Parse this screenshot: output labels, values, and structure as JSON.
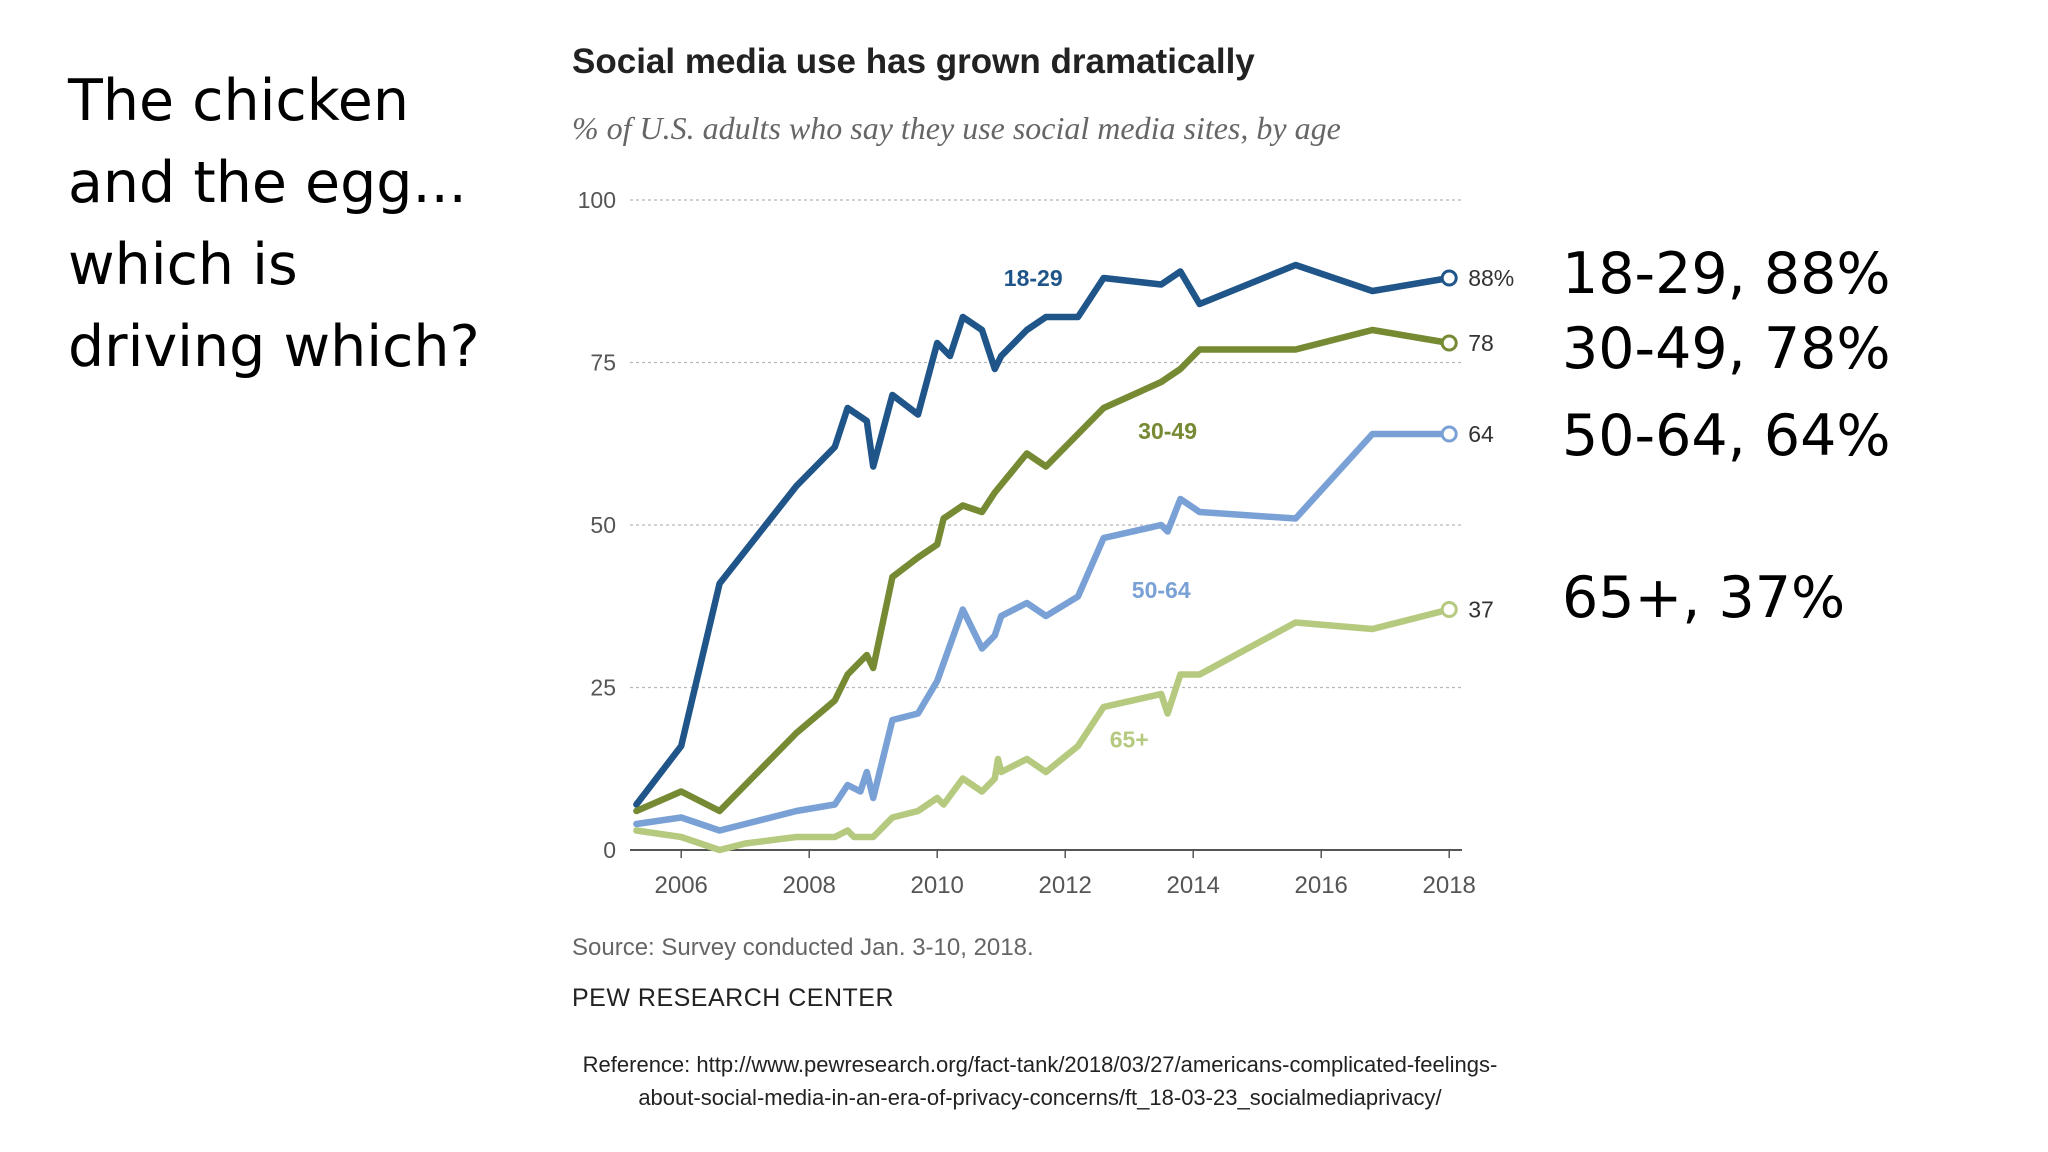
{
  "slide": {
    "question_lines": [
      "The chicken",
      "and the egg...",
      "which is",
      "driving which?"
    ],
    "callouts": [
      "18-29, 88%",
      "30-49, 78%",
      "50-64, 64%",
      "65+, 37%"
    ],
    "reference_lines": [
      "Reference: http://www.pewresearch.org/fact-tank/2018/03/27/americans-complicated-feelings-",
      "about-social-media-in-an-era-of-privacy-concerns/ft_18-03-23_socialmediaprivacy/"
    ]
  },
  "chart_data": {
    "type": "line",
    "title": "Social media use has grown dramatically",
    "subtitle": "% of U.S. adults who say they use social media sites, by age",
    "xlabel": "",
    "ylabel": "",
    "xlim": [
      2005.2,
      2018.2
    ],
    "ylim": [
      0,
      100
    ],
    "x_ticks": [
      2006,
      2008,
      2010,
      2012,
      2014,
      2016,
      2018
    ],
    "y_ticks": [
      0,
      25,
      50,
      75,
      100
    ],
    "grid": true,
    "source": "Source: Survey conducted Jan. 3-10, 2018.",
    "organization": "PEW RESEARCH CENTER",
    "series": [
      {
        "name": "18-29",
        "color": "#1f5589",
        "end_label": "88%",
        "points": [
          [
            2005.3,
            7
          ],
          [
            2006.0,
            16
          ],
          [
            2006.6,
            41
          ],
          [
            2007.0,
            46
          ],
          [
            2007.8,
            56
          ],
          [
            2008.4,
            62
          ],
          [
            2008.6,
            68
          ],
          [
            2008.9,
            66
          ],
          [
            2009.0,
            59
          ],
          [
            2009.3,
            70
          ],
          [
            2009.7,
            67
          ],
          [
            2010.0,
            78
          ],
          [
            2010.2,
            76
          ],
          [
            2010.4,
            82
          ],
          [
            2010.7,
            80
          ],
          [
            2010.9,
            74
          ],
          [
            2011.0,
            76
          ],
          [
            2011.4,
            80
          ],
          [
            2011.7,
            82
          ],
          [
            2012.2,
            82
          ],
          [
            2012.6,
            88
          ],
          [
            2013.5,
            87
          ],
          [
            2013.8,
            89
          ],
          [
            2014.1,
            84
          ],
          [
            2015.6,
            90
          ],
          [
            2016.8,
            86
          ],
          [
            2018.0,
            88
          ]
        ]
      },
      {
        "name": "30-49",
        "color": "#758a33",
        "end_label": "78",
        "points": [
          [
            2005.3,
            6
          ],
          [
            2006.0,
            9
          ],
          [
            2006.6,
            6
          ],
          [
            2007.0,
            10
          ],
          [
            2007.8,
            18
          ],
          [
            2008.4,
            23
          ],
          [
            2008.6,
            27
          ],
          [
            2008.9,
            30
          ],
          [
            2009.0,
            28
          ],
          [
            2009.3,
            42
          ],
          [
            2009.7,
            45
          ],
          [
            2010.0,
            47
          ],
          [
            2010.1,
            51
          ],
          [
            2010.4,
            53
          ],
          [
            2010.7,
            52
          ],
          [
            2010.9,
            55
          ],
          [
            2011.4,
            61
          ],
          [
            2011.7,
            59
          ],
          [
            2012.2,
            64
          ],
          [
            2012.6,
            68
          ],
          [
            2013.5,
            72
          ],
          [
            2013.8,
            74
          ],
          [
            2014.1,
            77
          ],
          [
            2015.6,
            77
          ],
          [
            2016.8,
            80
          ],
          [
            2018.0,
            78
          ]
        ]
      },
      {
        "name": "50-64",
        "color": "#7aa1d6",
        "end_label": "64",
        "points": [
          [
            2005.3,
            4
          ],
          [
            2006.0,
            5
          ],
          [
            2006.6,
            3
          ],
          [
            2007.0,
            4
          ],
          [
            2007.8,
            6
          ],
          [
            2008.4,
            7
          ],
          [
            2008.6,
            10
          ],
          [
            2008.8,
            9
          ],
          [
            2008.9,
            12
          ],
          [
            2009.0,
            8
          ],
          [
            2009.3,
            20
          ],
          [
            2009.7,
            21
          ],
          [
            2010.0,
            26
          ],
          [
            2010.4,
            37
          ],
          [
            2010.7,
            31
          ],
          [
            2010.9,
            33
          ],
          [
            2011.0,
            36
          ],
          [
            2011.4,
            38
          ],
          [
            2011.7,
            36
          ],
          [
            2012.2,
            39
          ],
          [
            2012.6,
            48
          ],
          [
            2013.5,
            50
          ],
          [
            2013.6,
            49
          ],
          [
            2013.8,
            54
          ],
          [
            2014.1,
            52
          ],
          [
            2015.6,
            51
          ],
          [
            2016.8,
            64
          ],
          [
            2018.0,
            64
          ]
        ]
      },
      {
        "name": "65+",
        "color": "#b5c97f",
        "end_label": "37",
        "points": [
          [
            2005.3,
            3
          ],
          [
            2006.0,
            2
          ],
          [
            2006.6,
            0
          ],
          [
            2007.0,
            1
          ],
          [
            2007.8,
            2
          ],
          [
            2008.4,
            2
          ],
          [
            2008.6,
            3
          ],
          [
            2008.7,
            2
          ],
          [
            2009.0,
            2
          ],
          [
            2009.3,
            5
          ],
          [
            2009.7,
            6
          ],
          [
            2010.0,
            8
          ],
          [
            2010.1,
            7
          ],
          [
            2010.4,
            11
          ],
          [
            2010.7,
            9
          ],
          [
            2010.9,
            11
          ],
          [
            2010.95,
            14
          ],
          [
            2011.0,
            12
          ],
          [
            2011.4,
            14
          ],
          [
            2011.7,
            12
          ],
          [
            2012.2,
            16
          ],
          [
            2012.6,
            22
          ],
          [
            2013.5,
            24
          ],
          [
            2013.6,
            21
          ],
          [
            2013.8,
            27
          ],
          [
            2014.1,
            27
          ],
          [
            2015.6,
            35
          ],
          [
            2016.8,
            34
          ],
          [
            2018.0,
            37
          ]
        ]
      }
    ],
    "inline_labels": [
      {
        "series": "18-29",
        "x": 2011.5,
        "y": 88
      },
      {
        "series": "30-49",
        "x": 2013.6,
        "y": 64.5
      },
      {
        "series": "50-64",
        "x": 2013.5,
        "y": 40
      },
      {
        "series": "65+",
        "x": 2013.0,
        "y": 17
      }
    ]
  }
}
